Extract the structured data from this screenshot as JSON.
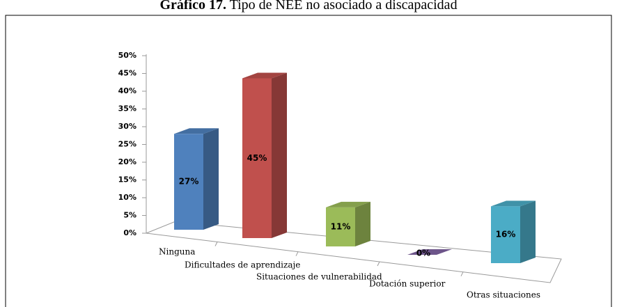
{
  "chart_data": {
    "type": "bar3d",
    "title_label": "Gráfico 17.",
    "title": "Tipo de NEE no asociado a discapacidad",
    "categories": [
      "Ninguna",
      "Dificultades de aprendizaje",
      "Situaciones de vulnerabilidad",
      "Dotación superior",
      "Otras situaciones"
    ],
    "values": [
      27,
      45,
      11,
      0,
      16
    ],
    "value_labels": [
      "27%",
      "45%",
      "11%",
      "0%",
      "16%"
    ],
    "colors": [
      "#4f81bd",
      "#c0504d",
      "#9bbb59",
      "#8064a2",
      "#4bacc6"
    ],
    "ylim": [
      0,
      50
    ],
    "yticks": [
      {
        "value": 0,
        "label": "0%"
      },
      {
        "value": 5,
        "label": "5%"
      },
      {
        "value": 10,
        "label": "10%"
      },
      {
        "value": 15,
        "label": "15%"
      },
      {
        "value": 20,
        "label": "20%"
      },
      {
        "value": 25,
        "label": "25%"
      },
      {
        "value": 30,
        "label": "30%"
      },
      {
        "value": 35,
        "label": "35%"
      },
      {
        "value": 40,
        "label": "40%"
      },
      {
        "value": 45,
        "label": "45%"
      },
      {
        "value": 50,
        "label": "50%"
      }
    ],
    "grid": false
  }
}
